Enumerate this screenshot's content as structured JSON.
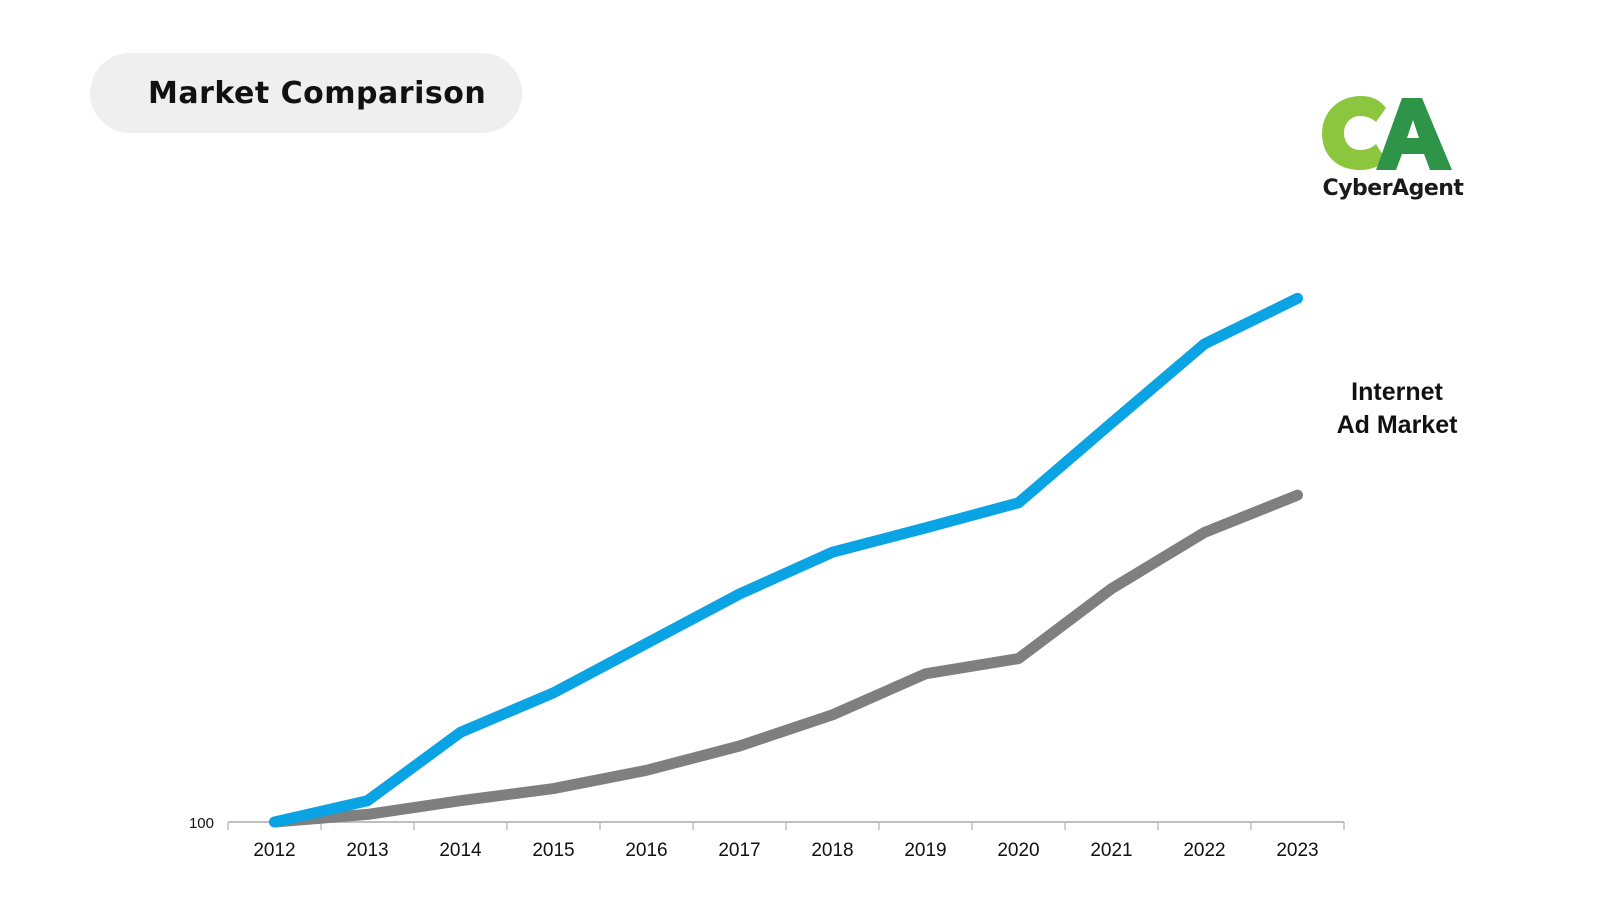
{
  "title": "Market Comparison",
  "logo": {
    "text": "CyberAgent",
    "mark_letters": "CA",
    "colors": {
      "c": "#8cc63f",
      "a": "#2e9448"
    }
  },
  "market_label": {
    "line1": "Internet",
    "line2": "Ad Market"
  },
  "colors": {
    "cyberagent": "#0aa3e3",
    "market": "#7f7f7f",
    "axis": "#bfbfbf"
  },
  "chart_data": {
    "type": "line",
    "categories": [
      "2012",
      "2013",
      "2014",
      "2015",
      "2016",
      "2017",
      "2018",
      "2019",
      "2020",
      "2021",
      "2022",
      "2023"
    ],
    "y_tick_labels": [
      "100"
    ],
    "ylim": [
      100,
      950
    ],
    "grid": false,
    "series": [
      {
        "name": "CyberAgent",
        "color": "#0aa3e3",
        "values": [
          100,
          128,
          218,
          270,
          335,
          400,
          455,
          487,
          520,
          625,
          729,
          789
        ]
      },
      {
        "name": "Internet Ad Market",
        "color": "#7f7f7f",
        "values": [
          100,
          110,
          128,
          144,
          168,
          200,
          241,
          295,
          315,
          407,
          481,
          530
        ]
      }
    ]
  }
}
